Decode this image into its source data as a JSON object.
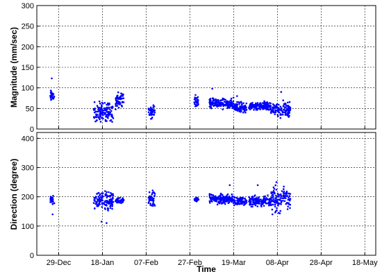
{
  "chart_data": [
    {
      "type": "scatter",
      "title": "",
      "xlabel": "",
      "ylabel": "Magnitude (mm/sec)",
      "xlim": [
        "2012-12-19",
        "2013-05-23"
      ],
      "ylim": [
        0,
        300
      ],
      "yticks": [
        "0",
        "50",
        "100",
        "150",
        "200",
        "250",
        "300"
      ],
      "xticks": [],
      "grid": true,
      "marker_color": "#0000ff",
      "clusters": [
        {
          "x_start": "2012-12-25",
          "x_end": "2012-12-26",
          "y_min": 60,
          "y_max": 100,
          "outliers": [
            123,
            88
          ]
        },
        {
          "x_start": "2013-01-14",
          "x_end": "2013-01-22",
          "y_min": 5,
          "y_max": 75,
          "outliers": [
            40
          ]
        },
        {
          "x_start": "2013-01-24",
          "x_end": "2013-01-27",
          "y_min": 45,
          "y_max": 95,
          "outliers": []
        },
        {
          "x_start": "2013-02-08",
          "x_end": "2013-02-10",
          "y_min": 20,
          "y_max": 65,
          "outliers": []
        },
        {
          "x_start": "2013-03-01",
          "x_end": "2013-03-02",
          "y_min": 50,
          "y_max": 85,
          "outliers": []
        },
        {
          "x_start": "2013-03-08",
          "x_end": "2013-03-18",
          "y_min": 45,
          "y_max": 80,
          "outliers": [
            98
          ]
        },
        {
          "x_start": "2013-03-19",
          "x_end": "2013-03-24",
          "y_min": 35,
          "y_max": 70,
          "outliers": [
            80
          ]
        },
        {
          "x_start": "2013-03-26",
          "x_end": "2013-04-04",
          "y_min": 40,
          "y_max": 70,
          "outliers": []
        },
        {
          "x_start": "2013-04-05",
          "x_end": "2013-04-13",
          "y_min": 20,
          "y_max": 75,
          "outliers": [
            90
          ]
        }
      ]
    },
    {
      "type": "scatter",
      "title": "",
      "xlabel": "Time",
      "ylabel": "Direction (degree)",
      "xlim": [
        "2012-12-19",
        "2013-05-23"
      ],
      "ylim": [
        0,
        420
      ],
      "yticks": [
        "0",
        "100",
        "200",
        "300",
        "400"
      ],
      "xticks": [
        "29-Dec",
        "18-Jan",
        "07-Feb",
        "27-Feb",
        "19-Mar",
        "08-Apr",
        "28-Apr",
        "18-May"
      ],
      "xtick_dates": [
        "2012-12-29",
        "2013-01-18",
        "2013-02-07",
        "2013-02-27",
        "2013-03-19",
        "2013-04-08",
        "2013-04-28",
        "2013-05-18"
      ],
      "grid": true,
      "marker_color": "#0000ff",
      "clusters": [
        {
          "x_start": "2012-12-25",
          "x_end": "2012-12-26",
          "y_min": 170,
          "y_max": 210,
          "outliers": [
            140
          ]
        },
        {
          "x_start": "2013-01-14",
          "x_end": "2013-01-22",
          "y_min": 140,
          "y_max": 235,
          "outliers": [
            110,
            115
          ]
        },
        {
          "x_start": "2013-01-24",
          "x_end": "2013-01-27",
          "y_min": 175,
          "y_max": 200,
          "outliers": []
        },
        {
          "x_start": "2013-02-08",
          "x_end": "2013-02-10",
          "y_min": 160,
          "y_max": 230,
          "outliers": []
        },
        {
          "x_start": "2013-03-01",
          "x_end": "2013-03-02",
          "y_min": 180,
          "y_max": 200,
          "outliers": []
        },
        {
          "x_start": "2013-03-08",
          "x_end": "2013-03-18",
          "y_min": 170,
          "y_max": 215,
          "outliers": [
            240
          ]
        },
        {
          "x_start": "2013-03-19",
          "x_end": "2013-03-24",
          "y_min": 165,
          "y_max": 205,
          "outliers": []
        },
        {
          "x_start": "2013-03-26",
          "x_end": "2013-04-04",
          "y_min": 160,
          "y_max": 210,
          "outliers": [
            240
          ]
        },
        {
          "x_start": "2013-04-05",
          "x_end": "2013-04-13",
          "y_min": 130,
          "y_max": 255,
          "outliers": [
            140
          ]
        }
      ]
    }
  ]
}
